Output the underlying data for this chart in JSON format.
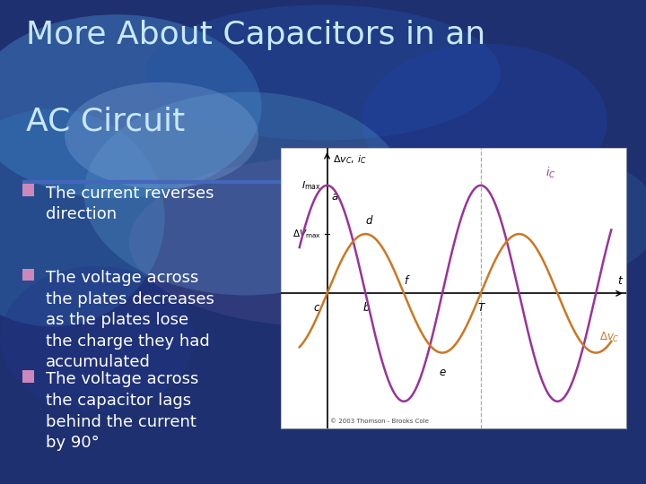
{
  "title_line1": "More About Capacitors in an",
  "title_line2": "AC Circuit",
  "title_color": "#c8e8ff",
  "title_fontsize": 26,
  "bullet_color": "#cc88bb",
  "bullet_text_color": "#ffffff",
  "bullets": [
    "The current reverses\ndirection",
    "The voltage across\nthe plates decreases\nas the plates lose\nthe charge they had\naccumulated",
    "The voltage across\nthe capacitor lags\nbehind the current\nby 90°"
  ],
  "bullet_fontsize": 13,
  "divider_color": "#4466bb",
  "graph_bg": "#ffffff",
  "current_color": "#993399",
  "voltage_color": "#cc7722",
  "copyright": "© 2003 Thomson - Brooks Cole",
  "I_max": 1.0,
  "V_max": 0.55,
  "t_start": -0.18,
  "t_end": 1.85,
  "xlim_left": -0.3,
  "xlim_right": 1.95,
  "ylim_bottom": -1.25,
  "ylim_top": 1.35
}
